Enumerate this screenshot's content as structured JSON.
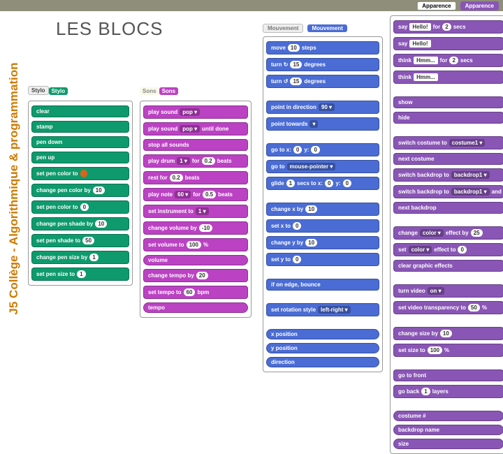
{
  "title": "LES BLOCS",
  "sidebar_title": "J5 Collège - Algorithmique & programmation",
  "tabs": {
    "apparence1": "Apparence",
    "apparence2": "Apparence",
    "mouvement1": "Mouvement",
    "mouvement2": "Mouvement",
    "stylo1": "Stylo",
    "stylo2": "Stylo",
    "sons1": "Sons",
    "sons2": "Sons"
  },
  "colors": {
    "pen": "#0e9a6c",
    "sound": "#bb42c3",
    "motion": "#4a6cd4",
    "looks": "#8956b5",
    "operators": "#5cb712",
    "sensing": "#2ca5e2"
  },
  "pen": [
    {
      "label": "clear"
    },
    {
      "label": "stamp"
    },
    {
      "label": "pen down"
    },
    {
      "label": "pen up"
    },
    {
      "label": "set pen color to",
      "args": [
        {
          "type": "color",
          "v": "#d8651a"
        }
      ]
    },
    {
      "label": "change pen color by",
      "args": [
        {
          "type": "num",
          "v": "10"
        }
      ]
    },
    {
      "label": "set pen color to",
      "args": [
        {
          "type": "num",
          "v": "0"
        }
      ]
    },
    {
      "label": "change pen shade by",
      "args": [
        {
          "type": "num",
          "v": "10"
        }
      ]
    },
    {
      "label": "set pen shade to",
      "args": [
        {
          "type": "num",
          "v": "50"
        }
      ]
    },
    {
      "label": "change pen size by",
      "args": [
        {
          "type": "num",
          "v": "1"
        }
      ]
    },
    {
      "label": "set pen size to",
      "args": [
        {
          "type": "num",
          "v": "1"
        }
      ]
    }
  ],
  "sound": [
    {
      "label": "play sound",
      "args": [
        {
          "type": "drop",
          "v": "pop ▾"
        }
      ]
    },
    {
      "label": "play sound",
      "args": [
        {
          "type": "drop",
          "v": "pop ▾"
        }
      ],
      "post": "until done"
    },
    {
      "label": "stop all sounds"
    },
    {
      "label": "play drum",
      "args": [
        {
          "type": "drop",
          "v": "1 ▾"
        }
      ],
      "mid": "for",
      "args2": [
        {
          "type": "num",
          "v": "0.2"
        }
      ],
      "post": "beats"
    },
    {
      "label": "rest for",
      "args": [
        {
          "type": "num",
          "v": "0.2"
        }
      ],
      "post": "beats"
    },
    {
      "label": "play note",
      "args": [
        {
          "type": "drop",
          "v": "60 ▾"
        }
      ],
      "mid": "for",
      "args2": [
        {
          "type": "num",
          "v": "0.5"
        }
      ],
      "post": "beats"
    },
    {
      "label": "set instrument to",
      "args": [
        {
          "type": "drop",
          "v": "1 ▾"
        }
      ]
    },
    {
      "label": "change volume by",
      "args": [
        {
          "type": "num",
          "v": "-10"
        }
      ]
    },
    {
      "label": "set volume to",
      "args": [
        {
          "type": "num",
          "v": "100"
        }
      ],
      "post": "%"
    },
    {
      "reporter": "volume"
    },
    {
      "label": "change tempo by",
      "args": [
        {
          "type": "num",
          "v": "20"
        }
      ]
    },
    {
      "label": "set tempo to",
      "args": [
        {
          "type": "num",
          "v": "60"
        }
      ],
      "post": "bpm"
    },
    {
      "reporter": "tempo"
    }
  ],
  "motion": [
    {
      "label": "move",
      "args": [
        {
          "type": "num",
          "v": "10"
        }
      ],
      "post": "steps"
    },
    {
      "label": "turn ↻",
      "args": [
        {
          "type": "num",
          "v": "15"
        }
      ],
      "post": "degrees"
    },
    {
      "label": "turn ↺",
      "args": [
        {
          "type": "num",
          "v": "15"
        }
      ],
      "post": "degrees"
    },
    {
      "gap": true
    },
    {
      "label": "point in direction",
      "args": [
        {
          "type": "drop",
          "v": "90 ▾"
        }
      ]
    },
    {
      "label": "point towards",
      "args": [
        {
          "type": "drop",
          "v": " ▾"
        }
      ]
    },
    {
      "gap": true
    },
    {
      "label": "go to x:",
      "args": [
        {
          "type": "num",
          "v": "0"
        }
      ],
      "mid": "y:",
      "args2": [
        {
          "type": "num",
          "v": "0"
        }
      ]
    },
    {
      "label": "go to",
      "args": [
        {
          "type": "drop",
          "v": "mouse-pointer ▾"
        }
      ]
    },
    {
      "label": "glide",
      "args": [
        {
          "type": "num",
          "v": "1"
        }
      ],
      "mid": "secs to x:",
      "args2": [
        {
          "type": "num",
          "v": "0"
        }
      ],
      "mid2": "y:",
      "args3": [
        {
          "type": "num",
          "v": "0"
        }
      ]
    },
    {
      "gap": true
    },
    {
      "label": "change x by",
      "args": [
        {
          "type": "num",
          "v": "10"
        }
      ]
    },
    {
      "label": "set x to",
      "args": [
        {
          "type": "num",
          "v": "0"
        }
      ]
    },
    {
      "label": "change y by",
      "args": [
        {
          "type": "num",
          "v": "10"
        }
      ]
    },
    {
      "label": "set y to",
      "args": [
        {
          "type": "num",
          "v": "0"
        }
      ]
    },
    {
      "gap": true
    },
    {
      "label": "if on edge, bounce"
    },
    {
      "gap": true
    },
    {
      "label": "set rotation style",
      "args": [
        {
          "type": "drop",
          "v": "left-right ▾"
        }
      ]
    },
    {
      "gap": true
    },
    {
      "reporter": "x position"
    },
    {
      "reporter": "y position"
    },
    {
      "reporter": "direction"
    }
  ],
  "looks": [
    {
      "label": "say",
      "args": [
        {
          "type": "sq",
          "v": "Hello!"
        }
      ],
      "mid": "for",
      "args2": [
        {
          "type": "num",
          "v": "2"
        }
      ],
      "post": "secs"
    },
    {
      "label": "say",
      "args": [
        {
          "type": "sq",
          "v": "Hello!"
        }
      ]
    },
    {
      "label": "think",
      "args": [
        {
          "type": "sq",
          "v": "Hmm..."
        }
      ],
      "mid": "for",
      "args2": [
        {
          "type": "num",
          "v": "2"
        }
      ],
      "post": "secs"
    },
    {
      "label": "think",
      "args": [
        {
          "type": "sq",
          "v": "Hmm..."
        }
      ]
    },
    {
      "gap": true
    },
    {
      "label": "show"
    },
    {
      "label": "hide"
    },
    {
      "gap": true
    },
    {
      "label": "switch costume to",
      "args": [
        {
          "type": "drop",
          "v": "costume1 ▾"
        }
      ]
    },
    {
      "label": "next costume"
    },
    {
      "label": "switch backdrop to",
      "args": [
        {
          "type": "drop",
          "v": "backdrop1 ▾"
        }
      ]
    },
    {
      "label": "switch backdrop to",
      "args": [
        {
          "type": "drop",
          "v": "backdrop1 ▾"
        }
      ],
      "post": "and wait"
    },
    {
      "label": "next backdrop"
    },
    {
      "gap": true
    },
    {
      "label": "change",
      "args": [
        {
          "type": "drop",
          "v": "color ▾"
        }
      ],
      "mid": "effect by",
      "args2": [
        {
          "type": "num",
          "v": "25"
        }
      ]
    },
    {
      "label": "set",
      "args": [
        {
          "type": "drop",
          "v": "color ▾"
        }
      ],
      "mid": "effect to",
      "args2": [
        {
          "type": "num",
          "v": "0"
        }
      ]
    },
    {
      "label": "clear graphic effects"
    },
    {
      "gap": true
    },
    {
      "label": "turn video",
      "args": [
        {
          "type": "drop",
          "v": "on ▾"
        }
      ]
    },
    {
      "label": "set video transparency to",
      "args": [
        {
          "type": "num",
          "v": "50"
        }
      ],
      "post": "%"
    },
    {
      "gap": true
    },
    {
      "label": "change size by",
      "args": [
        {
          "type": "num",
          "v": "10"
        }
      ]
    },
    {
      "label": "set size to",
      "args": [
        {
          "type": "num",
          "v": "100"
        }
      ],
      "post": "%"
    },
    {
      "gap": true
    },
    {
      "label": "go to front"
    },
    {
      "label": "go back",
      "args": [
        {
          "type": "num",
          "v": "1"
        }
      ],
      "post": "layers"
    },
    {
      "gap": true
    },
    {
      "reporter": "costume #"
    },
    {
      "reporter": "backdrop name"
    },
    {
      "reporter": "size"
    }
  ]
}
